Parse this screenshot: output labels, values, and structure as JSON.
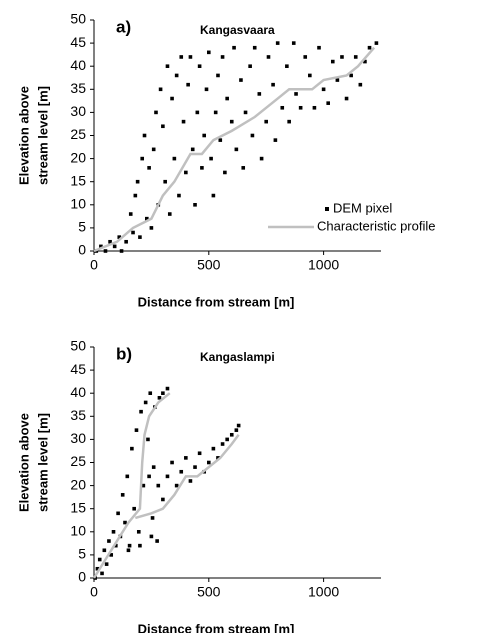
{
  "chart_data": [
    {
      "type": "scatter",
      "label": "a)",
      "title": "Kangasvaara",
      "x_label": "Distance from stream [m]",
      "y_label": [
        "Elevation above",
        "stream level [m]"
      ],
      "xlim": [
        0,
        1250
      ],
      "ylim": [
        0,
        50
      ],
      "xticks": [
        0,
        500,
        1000
      ],
      "yticks": [
        0,
        5,
        10,
        15,
        20,
        25,
        30,
        35,
        40,
        45,
        50
      ],
      "legend": true,
      "legend_position": "lower right",
      "series": [
        {
          "name": "DEM pixel",
          "color": "#000000",
          "marker": "square",
          "x": [
            10,
            30,
            50,
            70,
            90,
            110,
            120,
            140,
            160,
            170,
            180,
            190,
            200,
            210,
            220,
            230,
            240,
            250,
            260,
            270,
            280,
            290,
            300,
            310,
            320,
            330,
            340,
            350,
            360,
            370,
            380,
            390,
            400,
            410,
            420,
            430,
            440,
            450,
            460,
            470,
            480,
            490,
            500,
            510,
            520,
            530,
            540,
            550,
            560,
            570,
            580,
            600,
            610,
            620,
            640,
            650,
            660,
            680,
            690,
            700,
            720,
            730,
            750,
            760,
            780,
            790,
            800,
            820,
            840,
            850,
            870,
            880,
            900,
            920,
            940,
            960,
            980,
            1000,
            1020,
            1040,
            1060,
            1080,
            1100,
            1120,
            1140,
            1160,
            1180,
            1200,
            1230
          ],
          "values": [
            0,
            1,
            0,
            2,
            1,
            3,
            0,
            2,
            8,
            4,
            12,
            15,
            3,
            20,
            25,
            7,
            18,
            5,
            22,
            30,
            10,
            35,
            27,
            15,
            40,
            8,
            33,
            20,
            38,
            12,
            42,
            28,
            17,
            36,
            42,
            22,
            10,
            30,
            40,
            18,
            25,
            35,
            43,
            20,
            12,
            30,
            38,
            24,
            42,
            17,
            33,
            28,
            44,
            22,
            37,
            18,
            30,
            40,
            25,
            44,
            34,
            20,
            28,
            42,
            36,
            24,
            45,
            31,
            40,
            28,
            45,
            34,
            31,
            42,
            38,
            31,
            44,
            35,
            32,
            41,
            37,
            42,
            33,
            38,
            42,
            36,
            41,
            44,
            45
          ]
        },
        {
          "name": "Characteristic profile",
          "color": "#c0c0c0",
          "marker": "line",
          "x": [
            0,
            100,
            170,
            250,
            300,
            350,
            420,
            470,
            520,
            600,
            700,
            800,
            850,
            950,
            1000,
            1100,
            1150,
            1220
          ],
          "values": [
            0,
            2,
            5,
            7,
            12,
            15,
            21,
            21,
            24,
            26,
            29,
            33,
            35,
            35,
            37,
            38,
            40,
            44
          ]
        }
      ]
    },
    {
      "type": "scatter",
      "label": "b)",
      "title": "Kangaslampi",
      "x_label": "Distance from stream [m]",
      "y_label": [
        "Elevation above",
        "stream level [m]"
      ],
      "xlim": [
        0,
        1250
      ],
      "ylim": [
        0,
        50
      ],
      "xticks": [
        0,
        500,
        1000
      ],
      "yticks": [
        0,
        5,
        10,
        15,
        20,
        25,
        30,
        35,
        40,
        45,
        50
      ],
      "legend": false,
      "series": [
        {
          "color": "#000000",
          "marker": "square",
          "x": [
            5,
            15,
            25,
            35,
            45,
            55,
            65,
            75,
            85,
            95,
            105,
            115,
            125,
            135,
            145,
            155,
            165,
            175,
            185,
            195,
            205,
            215,
            225,
            235,
            245,
            255,
            265,
            275,
            285,
            300,
            320,
            240,
            260,
            280,
            300,
            320,
            340,
            360,
            380,
            400,
            420,
            440,
            460,
            480,
            500,
            520,
            540,
            560,
            580,
            600,
            620,
            630,
            150,
            200,
            250
          ],
          "values": [
            0,
            2,
            4,
            1,
            6,
            3,
            8,
            5,
            10,
            7,
            14,
            9,
            18,
            12,
            22,
            7,
            28,
            15,
            32,
            10,
            36,
            20,
            38,
            30,
            40,
            13,
            37,
            8,
            39,
            40,
            41,
            22,
            24,
            20,
            17,
            22,
            25,
            20,
            23,
            26,
            21,
            24,
            27,
            23,
            25,
            28,
            26,
            29,
            30,
            31,
            32,
            33,
            6,
            7,
            9
          ]
        },
        {
          "color": "#c0c0c0",
          "marker": "line",
          "x": [
            0,
            50,
            100,
            150,
            200,
            210,
            220,
            240,
            280,
            330,
            null,
            180,
            250,
            300,
            350,
            400,
            450,
            500,
            550,
            600,
            630
          ],
          "values": [
            0,
            4,
            8,
            12,
            15,
            25,
            31,
            35,
            38,
            40,
            null,
            13,
            14,
            15,
            18,
            22,
            22,
            24,
            26,
            29,
            31
          ]
        }
      ]
    }
  ]
}
